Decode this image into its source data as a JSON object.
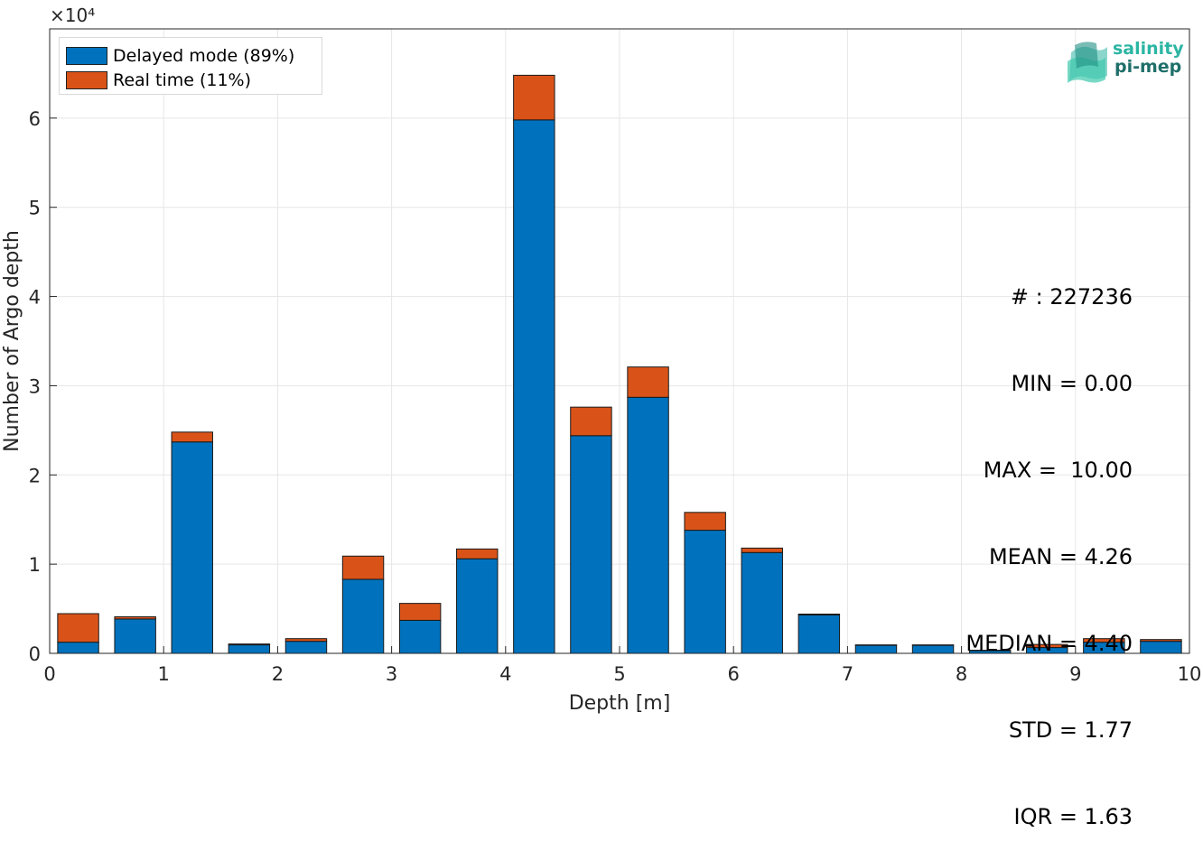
{
  "chart_data": {
    "type": "bar",
    "stacked": true,
    "x": [
      0.25,
      0.75,
      1.25,
      1.75,
      2.25,
      2.75,
      3.25,
      3.75,
      4.25,
      4.75,
      5.25,
      5.75,
      6.25,
      6.75,
      7.25,
      7.75,
      8.25,
      8.75,
      9.25,
      9.75
    ],
    "series": [
      {
        "name": "Delayed mode (89%)",
        "color": "#0072BD",
        "values": [
          1250,
          3850,
          23700,
          950,
          1350,
          8300,
          3700,
          10600,
          59800,
          24400,
          28700,
          13800,
          11300,
          4300,
          900,
          900,
          300,
          650,
          1250,
          1350
        ]
      },
      {
        "name": "Real time (11%)",
        "color": "#D95319",
        "values": [
          3200,
          250,
          1100,
          100,
          300,
          2600,
          1900,
          1100,
          5000,
          3200,
          3400,
          2000,
          500,
          100,
          50,
          50,
          50,
          350,
          400,
          200
        ]
      }
    ],
    "xlabel": "Depth [m]",
    "ylabel": "Number of Argo depth",
    "xlim": [
      0,
      10
    ],
    "ylim": [
      0,
      70000
    ],
    "xticks": [
      "0",
      "1",
      "2",
      "3",
      "4",
      "5",
      "6",
      "7",
      "8",
      "9",
      "10"
    ],
    "yticks": [
      "0",
      "1",
      "2",
      "3",
      "4",
      "5",
      "6"
    ],
    "y_exponent_label": "×10⁴",
    "grid": true,
    "legend_position": "top-left"
  },
  "stats": {
    "count": "# : 227236",
    "min": "MIN = 0.00",
    "max": "MAX =  10.00",
    "mean": "MEAN = 4.26",
    "median": "MEDIAN = 4.40",
    "std": "STD = 1.77",
    "iqr": "IQR = 1.63"
  },
  "logo": {
    "line1": "salinity",
    "line2": "pi-mep"
  }
}
